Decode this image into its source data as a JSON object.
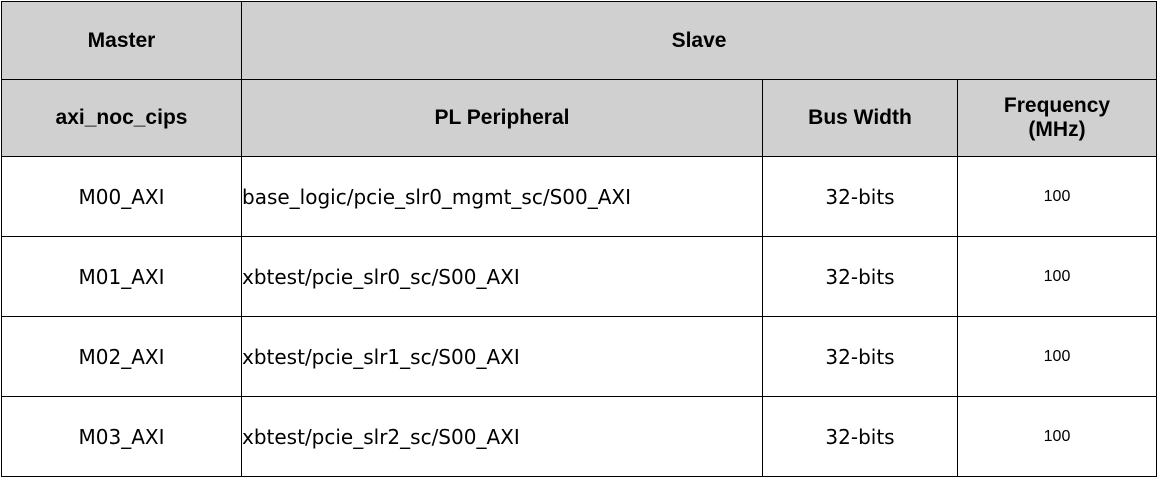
{
  "header": {
    "master": "Master",
    "slave": "Slave"
  },
  "subheader": {
    "master": "axi_noc_cips",
    "peripheral": "PL Peripheral",
    "bus_width": "Bus Width",
    "frequency_line1": "Frequency",
    "frequency_line2": "(MHz)"
  },
  "rows": [
    {
      "master": "M00_AXI",
      "peripheral": "base_logic/pcie_slr0_mgmt_sc/S00_AXI",
      "bus_width": "32-bits",
      "frequency": "100"
    },
    {
      "master": "M01_AXI",
      "peripheral": "xbtest/pcie_slr0_sc/S00_AXI",
      "bus_width": "32-bits",
      "frequency": "100"
    },
    {
      "master": "M02_AXI",
      "peripheral": "xbtest/pcie_slr1_sc/S00_AXI",
      "bus_width": "32-bits",
      "frequency": "100"
    },
    {
      "master": "M03_AXI",
      "peripheral": "xbtest/pcie_slr2_sc/S00_AXI",
      "bus_width": "32-bits",
      "frequency": "100"
    }
  ],
  "colors": {
    "header_bg": "#d0d0d0",
    "border": "#000000"
  }
}
